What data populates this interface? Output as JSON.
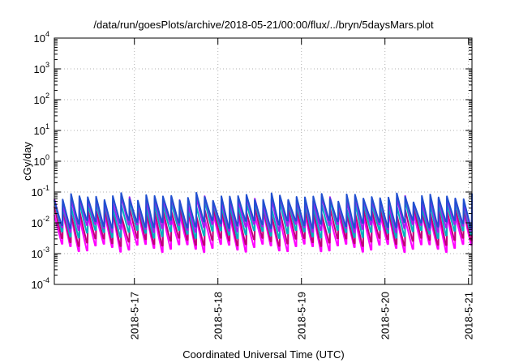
{
  "chart_data": {
    "type": "line",
    "title": "/data/run/goesPlots/archive/2018-05-21/00:00/flux/../bryn/5daysMars.plot",
    "xlabel": "Coordinated Universal Time (UTC)",
    "ylabel": "cGy/day",
    "yscale": "log",
    "ylim": [
      0.0001,
      10000
    ],
    "y_ticks": [
      {
        "base": "10",
        "exp": "-4",
        "value": 0.0001
      },
      {
        "base": "10",
        "exp": "-3",
        "value": 0.001
      },
      {
        "base": "10",
        "exp": "-2",
        "value": 0.01
      },
      {
        "base": "10",
        "exp": "-1",
        "value": 0.1
      },
      {
        "base": "10",
        "exp": "0",
        "value": 1
      },
      {
        "base": "10",
        "exp": "1",
        "value": 10
      },
      {
        "base": "10",
        "exp": "2",
        "value": 100
      },
      {
        "base": "10",
        "exp": "3",
        "value": 1000
      },
      {
        "base": "10",
        "exp": "4",
        "value": 10000
      }
    ],
    "xlim": [
      "2018-05-16 01:00",
      "2018-05-21 01:00"
    ],
    "x_ticks": [
      "2018-5-17",
      "2018-5-18",
      "2018-5-19",
      "2018-5-20",
      "2018-5-21"
    ],
    "grid": true,
    "cycles_per_day": 10,
    "series_style": [
      {
        "color": "#ff00ff",
        "peak": 0.018,
        "trough": 0.0016
      },
      {
        "color": "#c0007a",
        "peak": 0.026,
        "trough": 0.0025
      },
      {
        "color": "#00b0c0",
        "peak": 0.042,
        "trough": 0.0045
      },
      {
        "color": "#a020f0",
        "peak": 0.058,
        "trough": 0.007
      },
      {
        "color": "#2050d0",
        "peak": 0.07,
        "trough": 0.0095
      }
    ]
  }
}
